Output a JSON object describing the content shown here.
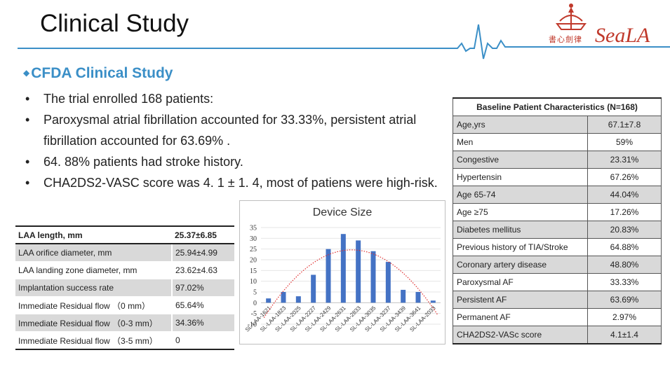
{
  "page": {
    "title": "Clinical Study"
  },
  "logo": {
    "brand": "SeaLA",
    "chinese": "書心劍律"
  },
  "section": {
    "marker": "◆",
    "heading": "CFDA Clinical Study"
  },
  "bullets": [
    "The trial enrolled 168 patients:",
    "Paroxysmal atrial fibrillation accounted for 33.33%, persistent atrial fibrillation accounted for 63.69% .",
    "64. 88% patients had stroke history.",
    "CHA2DS2-VASC score was 4. 1 ± 1. 4, most of patiens were high-risk."
  ],
  "left_table": {
    "rows": [
      {
        "label": "LAA length, mm",
        "value": "25.37±6.85"
      },
      {
        "label": "LAA orifice diameter, mm",
        "value": "25.94±4.99"
      },
      {
        "label": "LAA  landing zone diameter, mm",
        "value": "23.62±4.63"
      },
      {
        "label": "Implantation success rate",
        "value": "97.02%"
      },
      {
        "label": "Immediate Residual flow （0 mm）",
        "value": "65.64%"
      },
      {
        "label": "Immediate Residual flow （0-3 mm）",
        "value": "34.36%"
      },
      {
        "label": "Immediate Residual flow （3-5 mm）",
        "value": "0"
      }
    ]
  },
  "right_table": {
    "header": "Baseline Patient Characteristics (N=168)",
    "rows": [
      {
        "label": "Age,yrs",
        "value": "67.1±7.8"
      },
      {
        "label": "Men",
        "value": "59%"
      },
      {
        "label": "Congestive",
        "value": "23.31%"
      },
      {
        "label": "Hypertensin",
        "value": "67.26%"
      },
      {
        "label": "Age 65-74",
        "value": "44.04%"
      },
      {
        "label": "Age ≥75",
        "value": "17.26%"
      },
      {
        "label": "Diabetes mellitus",
        "value": "20.83%"
      },
      {
        "label": "Previous history of TIA/Stroke",
        "value": "64.88%"
      },
      {
        "label": "Coronary artery disease",
        "value": "48.80%"
      },
      {
        "label": "Paroxysmal AF",
        "value": "33.33%"
      },
      {
        "label": "Persistent AF",
        "value": "63.69%"
      },
      {
        "label": "Permanent AF",
        "value": "2.97%"
      },
      {
        "label": "CHA2DS2-VASc score",
        "value": "4.1±1.4"
      }
    ]
  },
  "colors": {
    "accent": "#3b8fc7",
    "bar": "#4472c4",
    "trend": "#e03030",
    "shade": "#d9d9d9",
    "logo": "#c0392b"
  },
  "chart_data": {
    "type": "bar",
    "title": "Device Size",
    "categories": [
      "SL-LAA-1621",
      "SL-LAA-1823",
      "SL-LAA-2025",
      "SL-LAA-2227",
      "SL-LAA-2429",
      "SL-LAA-2631",
      "SL-LAA-2833",
      "SL-LAA-3035",
      "SL-LAA-3237",
      "SL-LAA-3439",
      "SL-LAA-3641",
      "SL-LAA-2033"
    ],
    "values": [
      2,
      5,
      3,
      13,
      25,
      32,
      29,
      24,
      19,
      6,
      5,
      1
    ],
    "ylim": [
      -10,
      35
    ],
    "yticks": [
      -10,
      -5,
      0,
      5,
      10,
      15,
      20,
      25,
      30,
      35
    ],
    "yticklabels": [
      "-10",
      "-5",
      "0",
      "5",
      "10",
      "15",
      "20",
      "25",
      "30",
      "35"
    ],
    "trendline": "polynomial (dotted)",
    "xlabel": "",
    "ylabel": ""
  }
}
